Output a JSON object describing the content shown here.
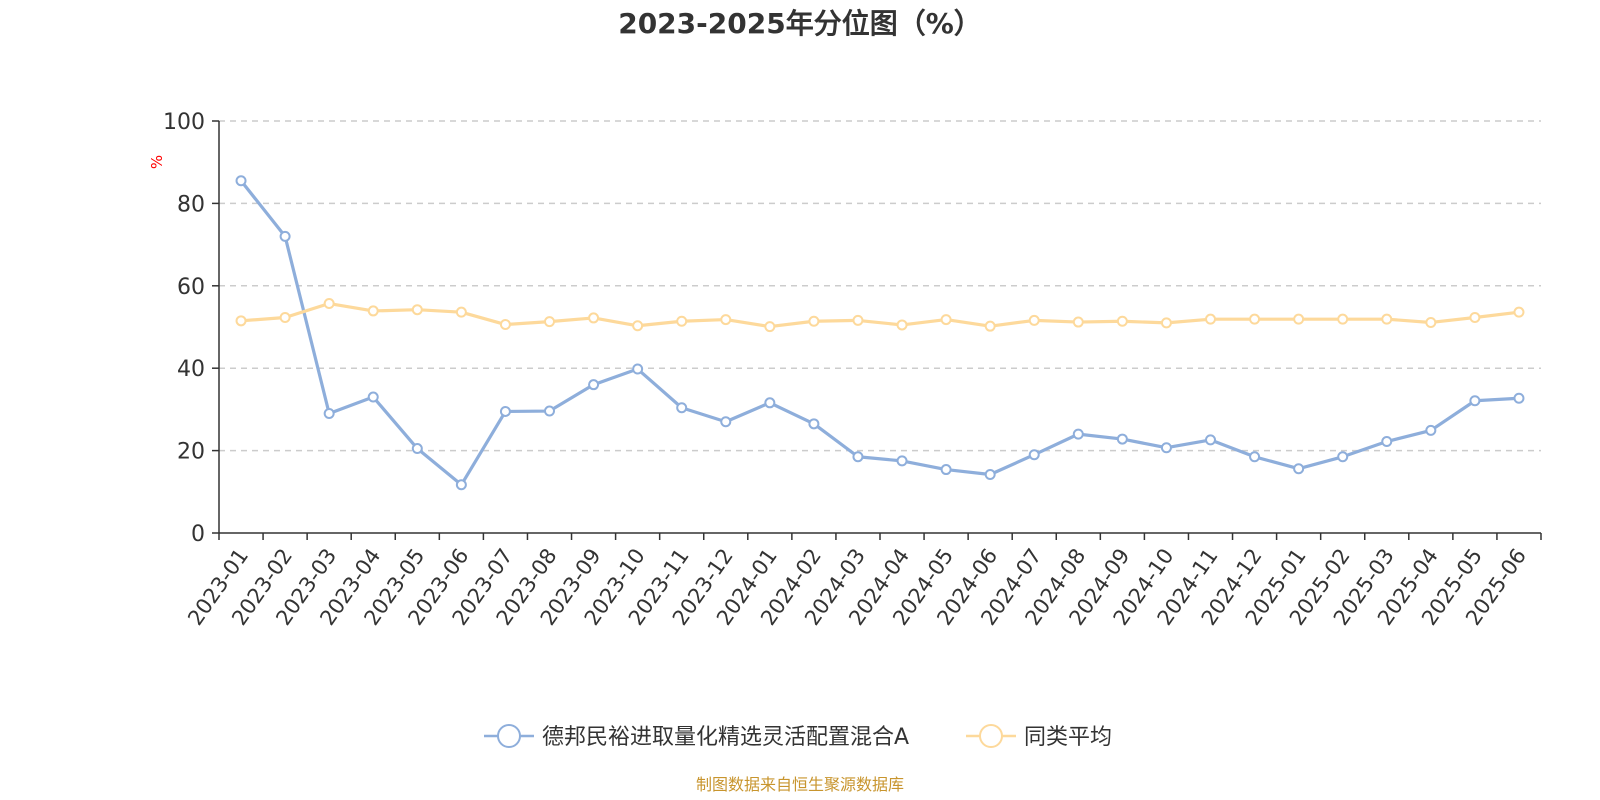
{
  "chart_data": {
    "type": "line",
    "title": "2023-2025年分位图（%）",
    "ylabel": "%",
    "xlabel": "",
    "ylim": [
      0,
      100
    ],
    "yticks": [
      0,
      20,
      40,
      60,
      80,
      100
    ],
    "grid": true,
    "legend_position": "bottom",
    "categories": [
      "2023-01",
      "2023-02",
      "2023-03",
      "2023-04",
      "2023-05",
      "2023-06",
      "2023-07",
      "2023-08",
      "2023-09",
      "2023-10",
      "2023-11",
      "2023-12",
      "2024-01",
      "2024-02",
      "2024-03",
      "2024-04",
      "2024-05",
      "2024-06",
      "2024-07",
      "2024-08",
      "2024-09",
      "2024-10",
      "2024-11",
      "2024-12",
      "2025-01",
      "2025-02",
      "2025-03",
      "2025-04",
      "2025-05",
      "2025-06"
    ],
    "series": [
      {
        "name": "德邦民裕进取量化精选灵活配置混合A",
        "color": "#8eaedb",
        "values": [
          85.5,
          72.0,
          29.0,
          33.0,
          20.5,
          11.7,
          29.5,
          29.6,
          36.0,
          39.8,
          30.4,
          27.0,
          31.6,
          26.5,
          18.5,
          17.5,
          15.4,
          14.2,
          19.0,
          24.0,
          22.8,
          20.7,
          22.6,
          18.5,
          15.6,
          18.5,
          22.2,
          24.9,
          32.1,
          32.7
        ]
      },
      {
        "name": "同类平均",
        "color": "#fdd99b",
        "values": [
          51.5,
          52.3,
          55.7,
          53.9,
          54.2,
          53.6,
          50.6,
          51.3,
          52.2,
          50.3,
          51.4,
          51.8,
          50.1,
          51.4,
          51.6,
          50.5,
          51.8,
          50.2,
          51.6,
          51.2,
          51.4,
          51.0,
          51.9,
          51.9,
          51.9,
          51.9,
          51.9,
          51.1,
          52.3,
          53.6
        ]
      }
    ]
  },
  "footer": {
    "source": "制图数据来自恒生聚源数据库"
  }
}
